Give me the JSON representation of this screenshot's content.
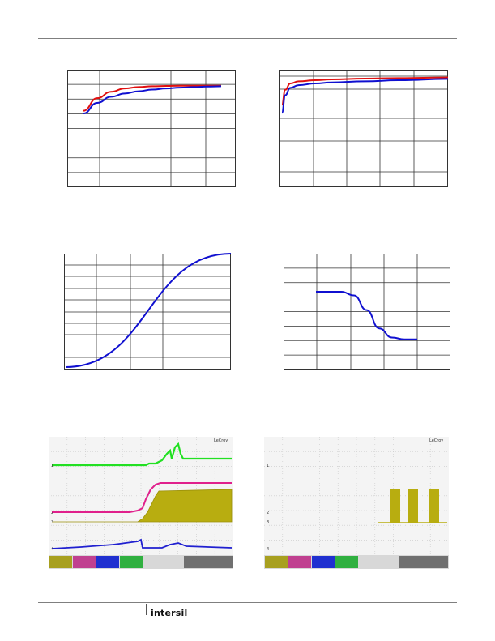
{
  "footer": {
    "logo_text": "intersil"
  },
  "scope_tags": {
    "left": "LeCroy",
    "right": "LeCroy"
  },
  "scope_channel_labels": {
    "c1": "1",
    "c2": "2",
    "c3": "3",
    "c4": "4"
  },
  "chart_data": [
    {
      "type": "line",
      "series": [
        {
          "color": "#e01010",
          "x": [
            0,
            1,
            2,
            3,
            4,
            5,
            6,
            7,
            8,
            9,
            10
          ],
          "values": [
            0.1,
            0.55,
            0.78,
            0.9,
            0.95,
            0.98,
            0.99,
            1.0,
            1.0,
            1.0,
            1.0
          ]
        },
        {
          "color": "#1010d0",
          "x": [
            0,
            1,
            2,
            3,
            4,
            5,
            6,
            7,
            8,
            9,
            10
          ],
          "values": [
            0.0,
            0.38,
            0.6,
            0.72,
            0.8,
            0.86,
            0.9,
            0.93,
            0.95,
            0.97,
            0.98
          ]
        }
      ]
    },
    {
      "type": "line",
      "series": [
        {
          "color": "#e01010",
          "x": [
            0,
            0.2,
            0.5,
            1,
            2,
            3,
            5,
            7,
            10
          ],
          "values": [
            0.0,
            0.55,
            0.78,
            0.86,
            0.9,
            0.93,
            0.96,
            0.98,
            1.0
          ]
        },
        {
          "color": "#1010d0",
          "x": [
            0,
            0.2,
            0.5,
            1,
            2,
            3,
            5,
            7,
            10
          ],
          "values": [
            -0.3,
            0.35,
            0.62,
            0.72,
            0.78,
            0.82,
            0.86,
            0.9,
            0.95
          ]
        }
      ]
    },
    {
      "type": "line",
      "series": [
        {
          "color": "#1010d0",
          "x": [
            0,
            10
          ],
          "values": [
            0,
            1
          ]
        }
      ]
    },
    {
      "type": "line",
      "series": [
        {
          "color": "#1010d0",
          "x": [
            0,
            2,
            3,
            4,
            5,
            6,
            7,
            8
          ],
          "values": [
            0.5,
            0.5,
            0.48,
            0.4,
            0.3,
            0.25,
            0.24,
            0.24
          ]
        }
      ]
    }
  ]
}
